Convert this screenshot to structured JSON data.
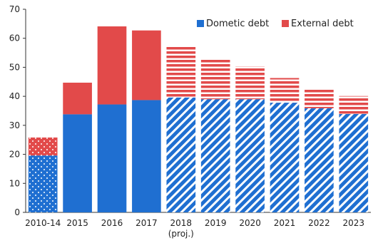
{
  "chart_data": {
    "type": "bar",
    "stacked": true,
    "categories": [
      "2010-14",
      "2015",
      "2016",
      "2017",
      "2018",
      "2019",
      "2020",
      "2021",
      "2022",
      "2023"
    ],
    "category_sublabels": [
      "",
      "",
      "",
      "",
      "(proj.)",
      "",
      "",
      "",
      "",
      ""
    ],
    "series": [
      {
        "name": "Dometic debt",
        "values": [
          19.6,
          33.8,
          37.2,
          38.7,
          39.6,
          39.0,
          39.0,
          37.8,
          35.9,
          33.9
        ]
      },
      {
        "name": "External debt",
        "values": [
          6.2,
          10.9,
          26.9,
          24.0,
          17.9,
          14.1,
          11.3,
          8.5,
          6.7,
          6.2
        ]
      }
    ],
    "fill_style": [
      "dotted",
      "solid",
      "solid",
      "solid",
      "striped",
      "striped",
      "striped",
      "striped",
      "striped",
      "striped"
    ],
    "colors": {
      "domestic": "#1f6fd1",
      "external": "#e24a4a"
    },
    "ylim": [
      0,
      70
    ],
    "yticks": [
      0,
      10,
      20,
      30,
      40,
      50,
      60,
      70
    ],
    "title": "",
    "xlabel": "",
    "ylabel": "",
    "grid": false,
    "legend_position": "top-right"
  }
}
